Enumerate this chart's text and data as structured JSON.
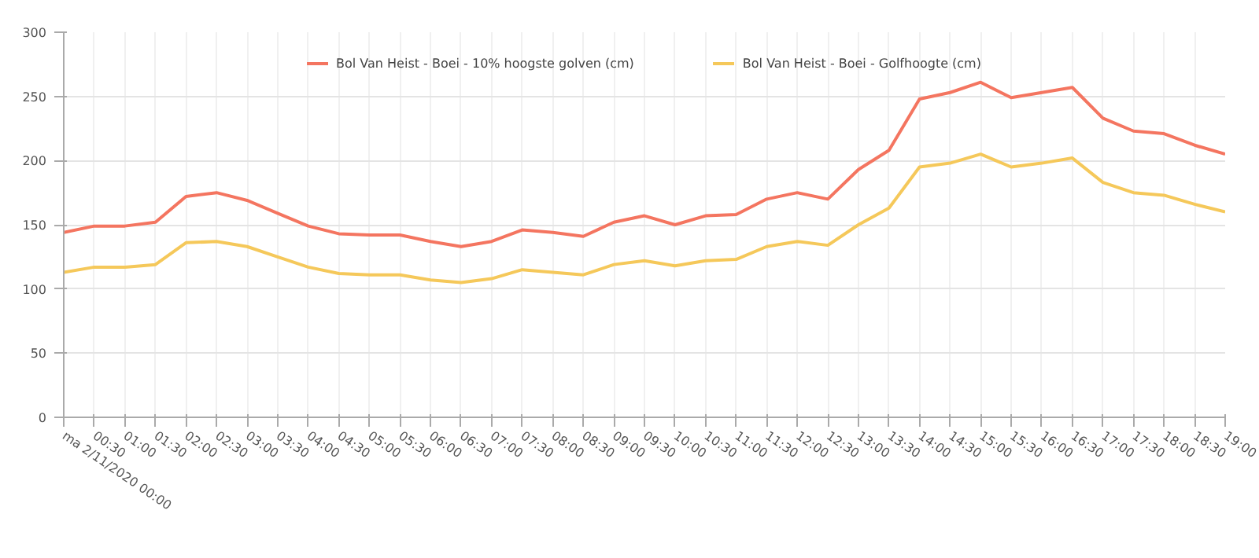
{
  "chart_data": {
    "type": "line",
    "categories": [
      "ma 2/11/2020 00:00",
      "00:30",
      "01:00",
      "01:30",
      "02:00",
      "02:30",
      "03:00",
      "03:30",
      "04:00",
      "04:30",
      "05:00",
      "05:30",
      "06:00",
      "06:30",
      "07:00",
      "07:30",
      "08:00",
      "08:30",
      "09:00",
      "09:30",
      "10:00",
      "10:30",
      "11:00",
      "11:30",
      "12:00",
      "12:30",
      "13:00",
      "13:30",
      "14:00",
      "14:30",
      "15:00",
      "15:30",
      "16:00",
      "16:30",
      "17:00",
      "17:30",
      "18:00",
      "18:30",
      "19:00"
    ],
    "series": [
      {
        "name": "Bol Van Heist - Boei - 10% hoogste golven (cm)",
        "color": "#f47560",
        "values": [
          144,
          149,
          149,
          152,
          172,
          175,
          169,
          159,
          149,
          143,
          142,
          142,
          137,
          133,
          137,
          146,
          144,
          141,
          152,
          157,
          150,
          157,
          158,
          170,
          175,
          170,
          193,
          208,
          248,
          253,
          261,
          249,
          253,
          257,
          233,
          223,
          221,
          212,
          205
        ]
      },
      {
        "name": "Bol Van Heist - Boei - Golfhoogte (cm)",
        "color": "#f5c85a",
        "values": [
          113,
          117,
          117,
          119,
          136,
          137,
          133,
          125,
          117,
          112,
          111,
          111,
          107,
          105,
          108,
          115,
          113,
          111,
          119,
          122,
          118,
          122,
          123,
          133,
          137,
          134,
          150,
          163,
          195,
          198,
          205,
          195,
          198,
          202,
          183,
          175,
          173,
          166,
          160
        ]
      }
    ],
    "ylim": [
      0,
      300
    ],
    "yticks": [
      0,
      50,
      100,
      150,
      200,
      250,
      300
    ],
    "grid": true,
    "legend": "top",
    "marker": "none",
    "line_style": "solid"
  }
}
